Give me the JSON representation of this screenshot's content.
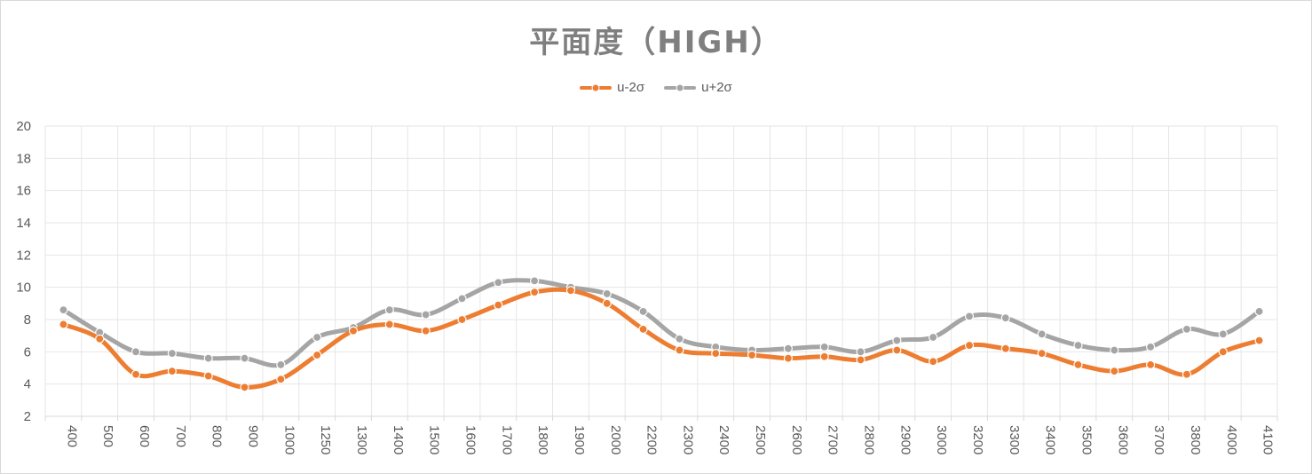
{
  "chart_data": {
    "type": "line",
    "title": "平面度（HIGH）",
    "categories": [
      "400",
      "500",
      "600",
      "700",
      "800",
      "900",
      "1000",
      "1250",
      "1300",
      "1400",
      "1500",
      "1600",
      "1700",
      "1800",
      "1900",
      "2000",
      "2200",
      "2300",
      "2400",
      "2500",
      "2600",
      "2700",
      "2800",
      "2900",
      "3000",
      "3200",
      "3300",
      "3400",
      "3500",
      "3600",
      "3700",
      "3800",
      "4000",
      "4100"
    ],
    "series": [
      {
        "name": "u-2σ",
        "color": "#ed7d31",
        "values": [
          7.7,
          6.8,
          4.6,
          4.8,
          4.5,
          3.8,
          4.3,
          5.8,
          7.3,
          7.7,
          7.3,
          8.0,
          8.9,
          9.7,
          9.8,
          9.0,
          7.4,
          6.1,
          5.9,
          5.8,
          5.6,
          5.7,
          5.5,
          6.1,
          5.4,
          6.4,
          6.2,
          5.9,
          5.2,
          4.8,
          5.2,
          4.6,
          6.0,
          6.7
        ]
      },
      {
        "name": "u+2σ",
        "color": "#a5a5a5",
        "values": [
          8.6,
          7.2,
          6.0,
          5.9,
          5.6,
          5.6,
          5.2,
          6.9,
          7.5,
          8.6,
          8.3,
          9.3,
          10.3,
          10.4,
          10.0,
          9.6,
          8.5,
          6.8,
          6.3,
          6.1,
          6.2,
          6.3,
          6.0,
          6.7,
          6.9,
          8.2,
          8.1,
          7.1,
          6.4,
          6.1,
          6.3,
          7.4,
          7.1,
          8.5
        ]
      }
    ],
    "ylim": [
      2,
      20
    ],
    "yticks": [
      2,
      4,
      6,
      8,
      10,
      12,
      14,
      16,
      18,
      20
    ],
    "grid": true,
    "legend": "top-center",
    "smooth": true
  }
}
